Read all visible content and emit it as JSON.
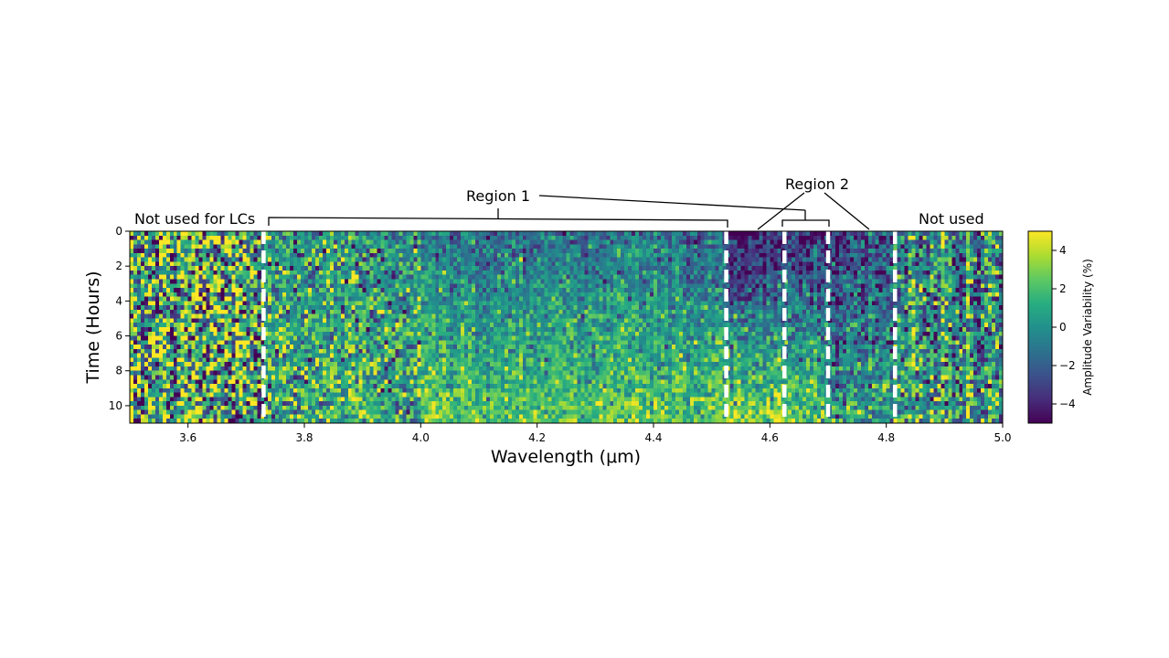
{
  "chart_data": {
    "type": "heatmap",
    "title": "",
    "xlabel": "Wavelength (μm)",
    "ylabel": "Time (Hours)",
    "xlim": [
      3.5,
      5.0
    ],
    "ylim": [
      11,
      0
    ],
    "x_ticks": [
      3.6,
      3.8,
      4.0,
      4.2,
      4.4,
      4.6,
      4.8,
      5.0
    ],
    "y_ticks": [
      0,
      2,
      4,
      6,
      8,
      10
    ],
    "x_tick_labels": [
      "3.6",
      "3.8",
      "4.0",
      "4.2",
      "4.4",
      "4.6",
      "4.8",
      "5.0"
    ],
    "y_tick_labels": [
      "0",
      "2",
      "4",
      "6",
      "8",
      "10"
    ],
    "colormap": "viridis",
    "colorbar": {
      "label": "Amplitude Variability (%)",
      "range": [
        -5,
        5
      ],
      "ticks": [
        4,
        2,
        0,
        -2,
        -4
      ],
      "tick_labels": [
        "4",
        "2",
        "0",
        "−2",
        "−4"
      ]
    },
    "boundaries_um": [
      3.73,
      4.525,
      4.625,
      4.7,
      4.815
    ],
    "boundary_style": "white dashed",
    "value_trend": {
      "description_regions": [
        {
          "x_range": [
            3.5,
            3.73
          ],
          "noise": "high"
        },
        {
          "x_range": [
            4.525,
            4.625
          ],
          "early_hours_value": -4.5,
          "late_hours_value": 3.5
        },
        {
          "x_range": [
            4.625,
            4.7
          ],
          "early_hours_value": -3.5,
          "late_hours_value": 2
        }
      ]
    },
    "annotations": {
      "not_used_left": "Not used for LCs",
      "region1": "Region 1",
      "region2": "Region 2",
      "not_used_right": "Not used"
    }
  }
}
